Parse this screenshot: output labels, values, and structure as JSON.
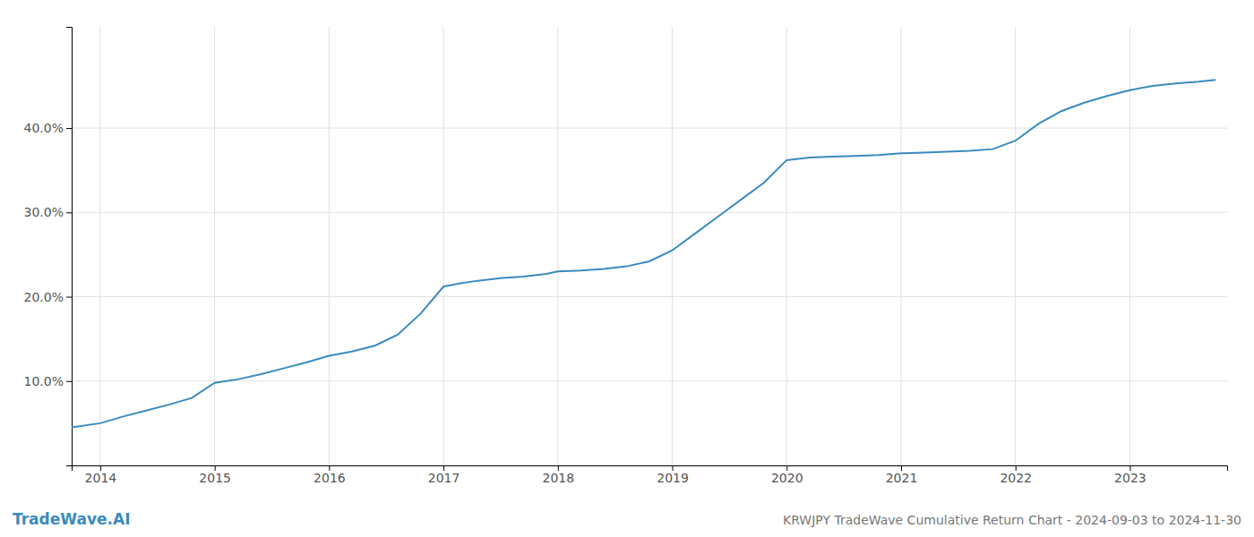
{
  "chart_data": {
    "type": "line",
    "title": "KRWJPY TradeWave Cumulative Return Chart - 2024-09-03 to 2024-11-30",
    "annotations": [
      "TradeWave.AI"
    ],
    "x": [
      2013.75,
      2014.0,
      2014.2,
      2014.4,
      2014.6,
      2014.8,
      2015.0,
      2015.2,
      2015.4,
      2015.6,
      2015.8,
      2016.0,
      2016.2,
      2016.4,
      2016.6,
      2016.8,
      2017.0,
      2017.15,
      2017.3,
      2017.5,
      2017.7,
      2017.9,
      2018.0,
      2018.2,
      2018.4,
      2018.6,
      2018.8,
      2019.0,
      2019.2,
      2019.4,
      2019.6,
      2019.8,
      2020.0,
      2020.2,
      2020.4,
      2020.6,
      2020.8,
      2021.0,
      2021.2,
      2021.4,
      2021.6,
      2021.8,
      2022.0,
      2022.2,
      2022.4,
      2022.6,
      2022.8,
      2023.0,
      2023.2,
      2023.4,
      2023.6,
      2023.75
    ],
    "values": [
      4.5,
      5.0,
      5.8,
      6.5,
      7.2,
      8.0,
      9.8,
      10.2,
      10.8,
      11.5,
      12.2,
      13.0,
      13.5,
      14.2,
      15.5,
      18.0,
      21.2,
      21.6,
      21.9,
      22.2,
      22.4,
      22.7,
      23.0,
      23.1,
      23.3,
      23.6,
      24.2,
      25.5,
      27.5,
      29.5,
      31.5,
      33.5,
      36.2,
      36.5,
      36.6,
      36.7,
      36.8,
      37.0,
      37.1,
      37.2,
      37.3,
      37.5,
      38.5,
      40.5,
      42.0,
      43.0,
      43.8,
      44.5,
      45.0,
      45.3,
      45.5,
      45.7
    ],
    "color": "#3a8bbf",
    "xlim": [
      2013.75,
      2023.85
    ],
    "ylim": [
      0,
      52
    ],
    "xticks": [
      2014,
      2015,
      2016,
      2017,
      2018,
      2019,
      2020,
      2021,
      2022,
      2023
    ],
    "yticks": [
      {
        "value": 10.0,
        "label": "10.0%"
      },
      {
        "value": 20.0,
        "label": "20.0%"
      },
      {
        "value": 30.0,
        "label": "30.0%"
      },
      {
        "value": 40.0,
        "label": "40.0%"
      }
    ],
    "grid": true
  }
}
